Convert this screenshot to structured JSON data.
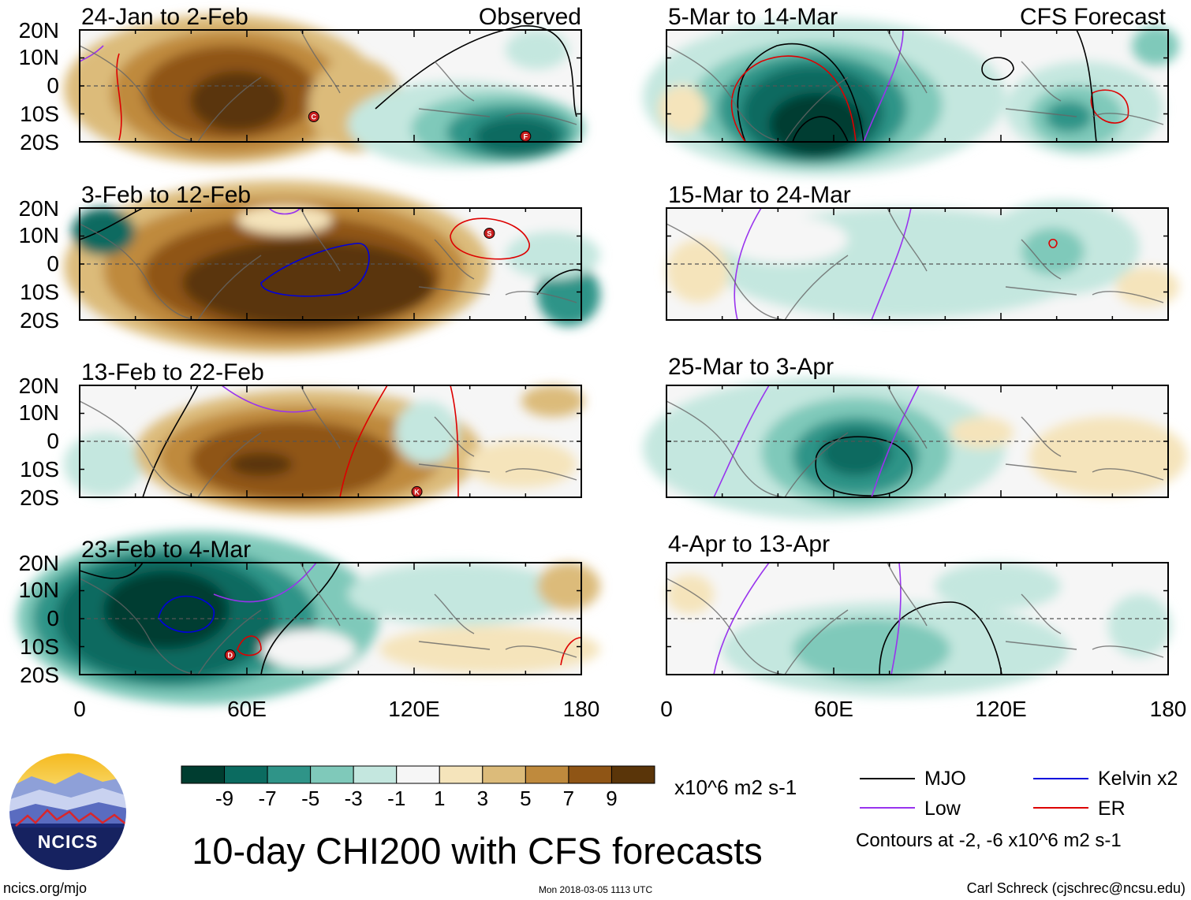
{
  "left_column_label": "Observed",
  "right_column_label": "CFS Forecast",
  "y_ticks": [
    "20N",
    "10N",
    "0",
    "10S",
    "20S"
  ],
  "x_ticks": [
    "0",
    "60E",
    "120E",
    "180"
  ],
  "lon_range": [
    0,
    180
  ],
  "lat_range": [
    -20,
    20
  ],
  "panels": [
    {
      "column": "observed",
      "period": "24-Jan to 2-Feb",
      "markers": [
        {
          "letter": "C",
          "lon": 84,
          "lat": -11
        },
        {
          "letter": "F",
          "lon": 160,
          "lat": -18
        }
      ]
    },
    {
      "column": "observed",
      "period": "3-Feb to 12-Feb",
      "markers": [
        {
          "letter": "S",
          "lon": 147,
          "lat": 11
        }
      ]
    },
    {
      "column": "observed",
      "period": "13-Feb to 22-Feb",
      "markers": [
        {
          "letter": "K",
          "lon": 121,
          "lat": -18
        }
      ]
    },
    {
      "column": "observed",
      "period": "23-Feb to 4-Mar",
      "markers": [
        {
          "letter": "D",
          "lon": 54,
          "lat": -13
        }
      ]
    },
    {
      "column": "forecast",
      "period": "5-Mar to 14-Mar",
      "markers": []
    },
    {
      "column": "forecast",
      "period": "15-Mar to 24-Mar",
      "markers": []
    },
    {
      "column": "forecast",
      "period": "25-Mar to 3-Apr",
      "markers": []
    },
    {
      "column": "forecast",
      "period": "4-Apr to 13-Apr",
      "markers": []
    }
  ],
  "colorbar": {
    "labels": [
      "-9",
      "-7",
      "-5",
      "-3",
      "-1",
      "1",
      "3",
      "5",
      "7",
      "9"
    ],
    "colors": [
      "#003d30",
      "#0b6b60",
      "#2f9488",
      "#7fc9ba",
      "#c4e7df",
      "#f6f6f6",
      "#f5e4bb",
      "#dcbb7a",
      "#bf8a3d",
      "#8f5515",
      "#5a3509"
    ],
    "units": "x10^6 m2 s-1"
  },
  "legend": {
    "items": [
      {
        "label": "MJO",
        "color": "#000000"
      },
      {
        "label": "Low",
        "color": "#9933ee"
      },
      {
        "label": "Kelvin x2",
        "color": "#0000dd"
      },
      {
        "label": "ER",
        "color": "#dd0000"
      }
    ],
    "note": "Contours at -2, -6 x10^6 m2 s-1"
  },
  "title": "10-day CHI200 with CFS forecasts",
  "logo_text": "NCICS",
  "footer": {
    "left": "ncics.org/mjo",
    "center": "Mon 2018-03-05 1113 UTC",
    "right": "Carl Schreck (cjschrec@ncsu.edu)"
  }
}
